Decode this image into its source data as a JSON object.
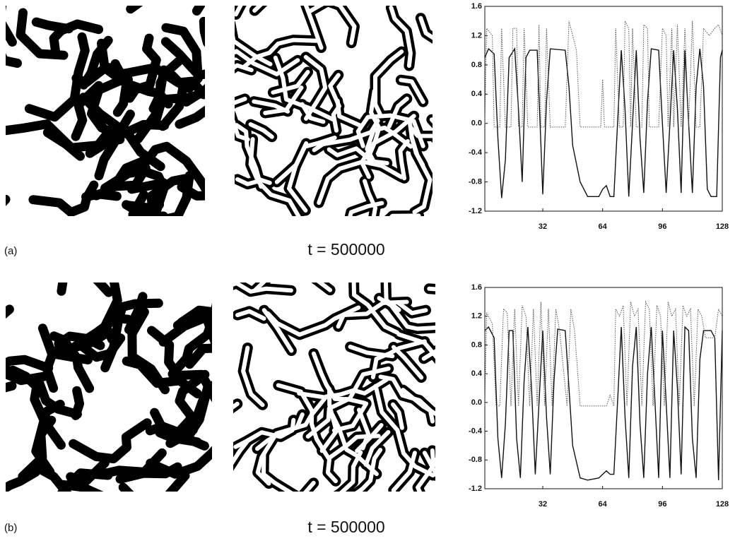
{
  "panels": [
    {
      "label": "(a)",
      "caption": "t = 500000"
    },
    {
      "label": "(b)",
      "caption": "t = 500000"
    }
  ],
  "chart_data": [
    {
      "type": "line",
      "xlim": [
        1,
        128
      ],
      "ylim": [
        -1.2,
        1.6
      ],
      "xticks": [
        32,
        64,
        96,
        128
      ],
      "yticks": [
        1.6,
        1.2,
        0.8,
        0.4,
        {
          "value": 0,
          "label": "0.0"
        },
        -0.4,
        -0.8,
        -1.2
      ],
      "series": [
        {
          "style": "solid",
          "color": "#111111",
          "x": [
            1,
            3,
            6,
            8,
            10,
            12,
            14,
            17,
            19,
            21,
            23,
            25,
            29,
            31,
            32,
            34,
            36,
            44,
            46,
            48,
            52,
            56,
            62,
            64,
            66,
            68,
            70,
            72,
            74,
            76,
            78,
            80,
            82,
            84,
            86,
            88,
            90,
            94,
            96,
            98,
            100,
            102,
            104,
            106,
            108,
            110,
            112,
            114,
            116,
            118,
            120,
            122,
            125,
            127,
            128
          ],
          "values": [
            0.9,
            1.02,
            0.95,
            -0.2,
            -1.02,
            -0.5,
            0.9,
            1.02,
            0.2,
            -0.8,
            0.9,
            1.0,
            1.0,
            -0.3,
            -0.97,
            0.3,
            1.02,
            1.0,
            0.5,
            -0.3,
            -0.8,
            -1.0,
            -1.0,
            -0.9,
            -0.85,
            -1.0,
            -1.0,
            0.0,
            1.0,
            0.2,
            -1.0,
            0.0,
            1.0,
            -0.2,
            -0.95,
            0.3,
            1.02,
            1.0,
            0.0,
            -0.95,
            0.0,
            1.0,
            0.2,
            -0.95,
            1.0,
            0.0,
            -0.95,
            0.5,
            1.02,
            0.5,
            -0.9,
            -1.0,
            -1.0,
            0.9,
            1.0
          ]
        },
        {
          "style": "dotted",
          "color": "#555555",
          "x": [
            1,
            2,
            5,
            6,
            9,
            10,
            12,
            15,
            16,
            18,
            19,
            21,
            22,
            24,
            29,
            30,
            31,
            33,
            34,
            36,
            44,
            46,
            50,
            52,
            63,
            64,
            65,
            70,
            71,
            73,
            75,
            76,
            78,
            79,
            80,
            82,
            85,
            86,
            88,
            89,
            94,
            96,
            98,
            99,
            101,
            102,
            104,
            106,
            108,
            110,
            112,
            114,
            116,
            118,
            121,
            124,
            126,
            128
          ],
          "values": [
            0.0,
            1.3,
            1.2,
            -0.05,
            -0.05,
            1.3,
            -0.05,
            -0.05,
            1.3,
            1.3,
            -0.05,
            -0.05,
            1.3,
            -0.05,
            -0.05,
            1.35,
            -0.05,
            -0.05,
            1.3,
            -0.05,
            -0.05,
            1.4,
            1.0,
            -0.05,
            -0.05,
            0.6,
            -0.05,
            -0.05,
            1.3,
            -0.05,
            -0.05,
            1.4,
            1.3,
            -0.05,
            1.3,
            -0.05,
            -0.05,
            1.35,
            1.3,
            -0.05,
            -0.05,
            1.3,
            1.2,
            -0.05,
            1.3,
            -0.05,
            1.35,
            -0.05,
            1.3,
            -0.05,
            1.4,
            -0.05,
            -0.05,
            1.3,
            1.2,
            1.3,
            1.35,
            1.2
          ]
        }
      ]
    },
    {
      "type": "line",
      "xlim": [
        1,
        128
      ],
      "ylim": [
        -1.2,
        1.6
      ],
      "xticks": [
        32,
        64,
        96,
        128
      ],
      "yticks": [
        1.6,
        1.2,
        0.8,
        0.4,
        {
          "value": 0,
          "label": "0.0"
        },
        -0.4,
        -0.8,
        -1.2
      ],
      "series": [
        {
          "style": "solid",
          "color": "#111111",
          "x": [
            1,
            3,
            6,
            8,
            10,
            12,
            14,
            16,
            18,
            20,
            22,
            24,
            26,
            28,
            30,
            32,
            34,
            36,
            38,
            40,
            44,
            46,
            48,
            52,
            56,
            62,
            64,
            66,
            68,
            70,
            72,
            74,
            76,
            78,
            80,
            82,
            84,
            86,
            88,
            90,
            92,
            94,
            96,
            98,
            100,
            102,
            104,
            106,
            108,
            110,
            112,
            114,
            116,
            118,
            120,
            122,
            124,
            126,
            128
          ],
          "values": [
            1.0,
            1.05,
            0.9,
            -0.5,
            -1.05,
            -0.3,
            1.0,
            1.0,
            -0.5,
            -1.05,
            0.3,
            1.05,
            0.2,
            -1.0,
            0.0,
            1.0,
            -0.2,
            -1.0,
            0.3,
            1.02,
            1.0,
            0.2,
            -0.6,
            -1.05,
            -1.08,
            -1.05,
            -1.0,
            -0.95,
            -1.0,
            -1.0,
            0.0,
            1.05,
            -0.2,
            -1.05,
            0.5,
            1.05,
            -0.3,
            -1.05,
            0.4,
            1.05,
            0.0,
            -1.05,
            1.0,
            0.0,
            -1.05,
            1.0,
            0.2,
            -1.0,
            1.05,
            1.0,
            -0.5,
            -1.05,
            0.6,
            1.0,
            1.0,
            1.0,
            0.9,
            -1.08,
            1.0
          ]
        },
        {
          "style": "dotted",
          "color": "#555555",
          "x": [
            1,
            2,
            5,
            7,
            9,
            11,
            13,
            15,
            17,
            19,
            21,
            23,
            25,
            27,
            29,
            31,
            33,
            35,
            37,
            39,
            41,
            45,
            47,
            49,
            52,
            62,
            66,
            68,
            70,
            71,
            73,
            75,
            77,
            79,
            81,
            83,
            85,
            87,
            89,
            91,
            93,
            95,
            97,
            99,
            101,
            103,
            105,
            107,
            109,
            111,
            113,
            115,
            117,
            119,
            121,
            124,
            126,
            128
          ],
          "values": [
            -0.05,
            1.25,
            1.1,
            -0.05,
            -0.05,
            1.3,
            1.25,
            -0.05,
            1.3,
            -0.05,
            1.35,
            1.2,
            -0.05,
            1.3,
            -0.05,
            1.4,
            -0.05,
            1.3,
            -0.05,
            1.3,
            1.0,
            -0.05,
            1.3,
            1.0,
            -0.05,
            -0.05,
            -0.05,
            0.1,
            -0.05,
            1.3,
            1.2,
            1.35,
            -0.05,
            1.4,
            1.2,
            1.3,
            -0.05,
            1.4,
            1.3,
            -0.05,
            1.35,
            1.2,
            -0.05,
            1.4,
            1.2,
            1.3,
            -0.05,
            1.35,
            1.2,
            1.3,
            -0.05,
            1.3,
            1.2,
            0.9,
            0.9,
            0.9,
            1.3,
            1.2
          ]
        }
      ]
    }
  ]
}
